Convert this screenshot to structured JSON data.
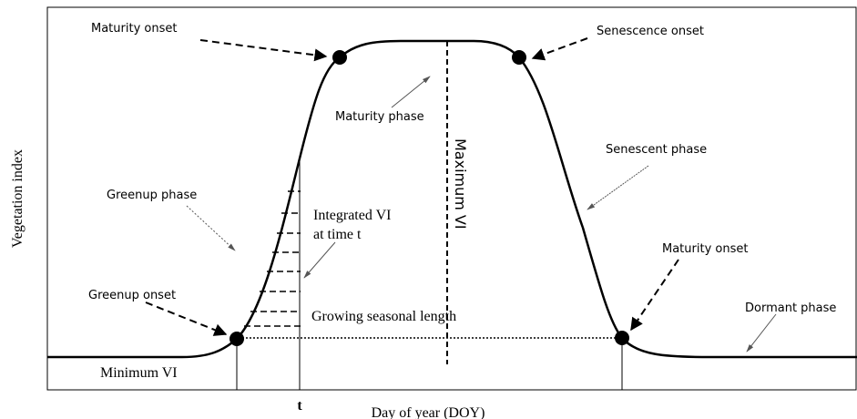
{
  "axes": {
    "x_label": "Day of year (DOY)",
    "y_label": "Vegetation index",
    "x_marker": "t"
  },
  "labels": {
    "maturity_onset_left": "Maturity onset",
    "senescence_onset": "Senescence onset",
    "maturity_phase": "Maturity phase",
    "maximum_vi": "Maximum VI",
    "senescent_phase": "Senescent phase",
    "greenup_phase": "Greenup phase",
    "integrated_vi": "Integrated VI",
    "integrated_vi_time": "at time t",
    "greenup_onset": "Greenup onset",
    "growing_season_length": "Growing seasonal length",
    "maturity_onset_right": "Maturity onset",
    "dormant_phase": "Dormant phase",
    "minimum_vi": "Minimum VI"
  }
}
